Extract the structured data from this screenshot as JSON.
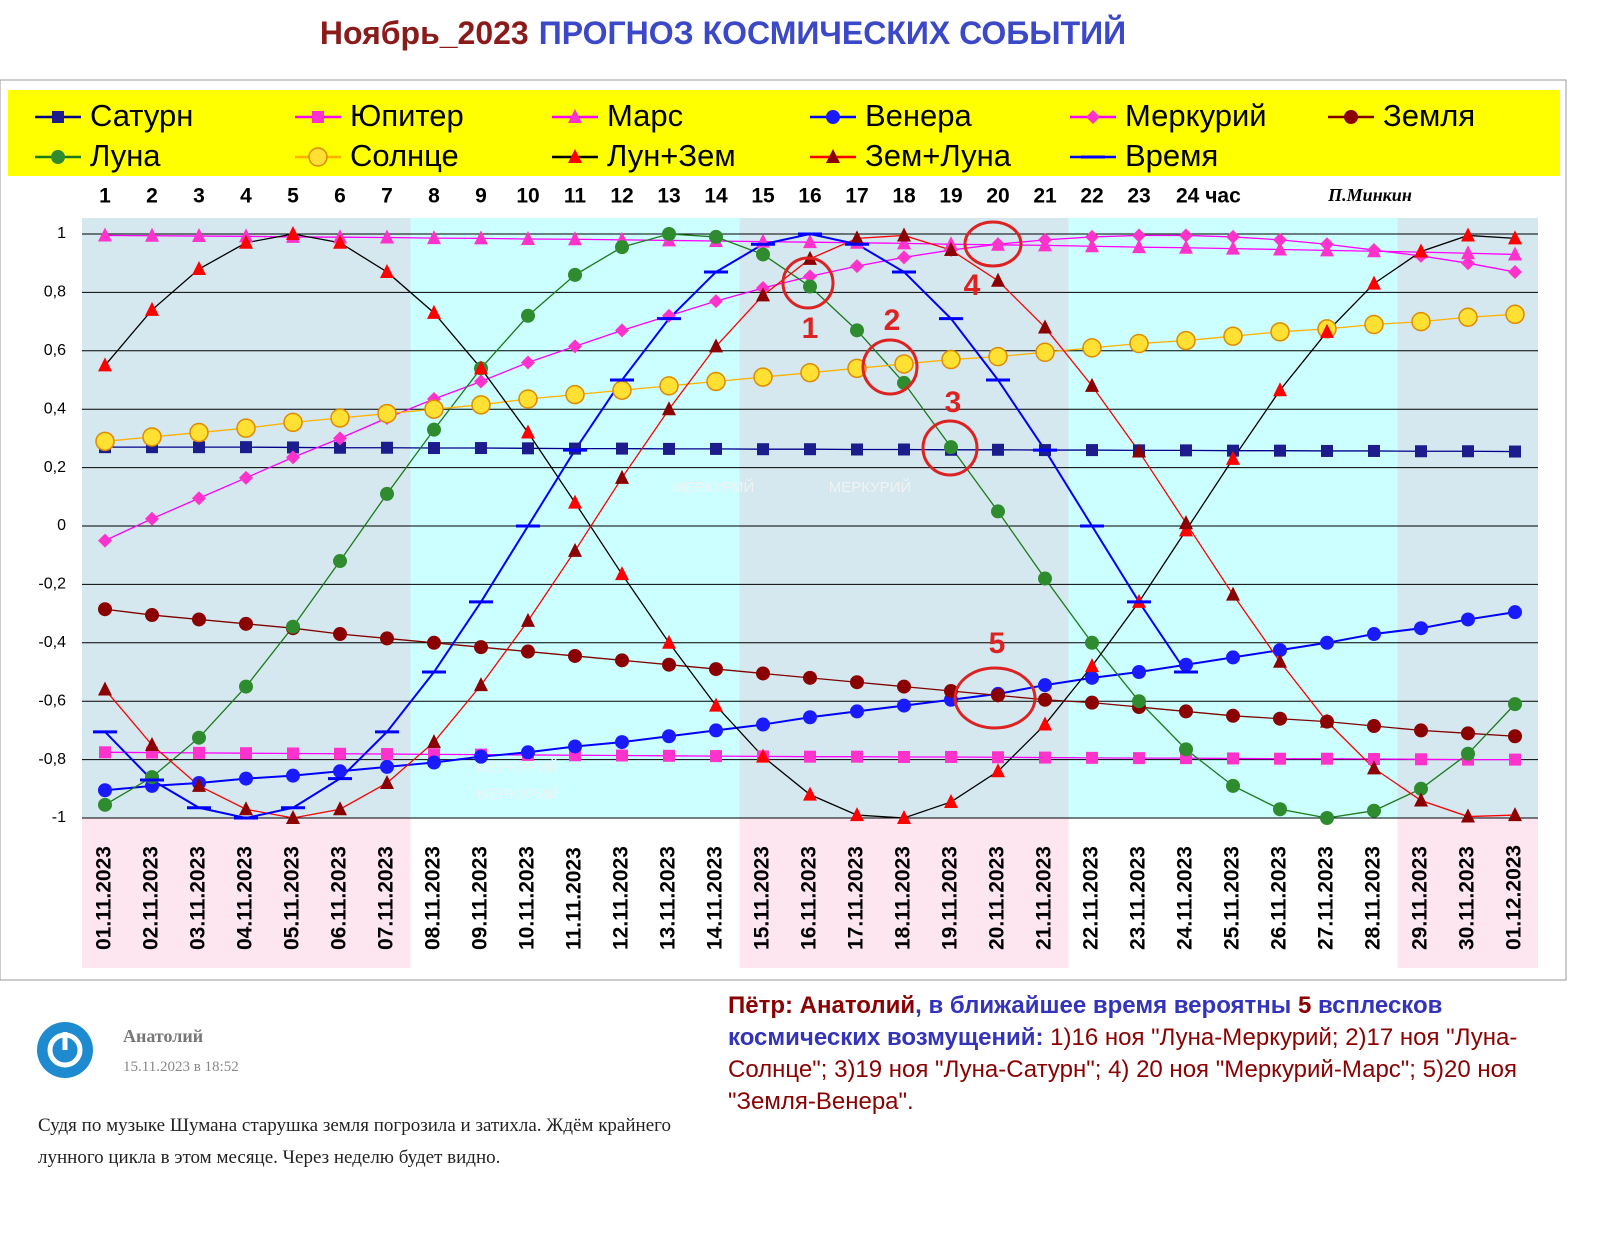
{
  "chart_data": {
    "type": "line",
    "title_parts": [
      "Ноябрь_2023",
      "ПРОГНОЗ КОСМИЧЕСКИХ СОБЫТИЙ"
    ],
    "credit": "П.Минкин",
    "hour_labels": [
      "1",
      "2",
      "3",
      "4",
      "5",
      "6",
      "7",
      "8",
      "9",
      "10",
      "11",
      "12",
      "13",
      "14",
      "15",
      "16",
      "17",
      "18",
      "19",
      "20",
      "21",
      "22",
      "23",
      "24 час"
    ],
    "categories": [
      "01.11.2023",
      "02.11.2023",
      "03.11.2023",
      "04.11.2023",
      "05.11.2023",
      "06.11.2023",
      "07.11.2023",
      "08.11.2023",
      "09.11.2023",
      "10.11.2023",
      "11.11.2023",
      "12.11.2023",
      "13.11.2023",
      "14.11.2023",
      "15.11.2023",
      "16.11.2023",
      "17.11.2023",
      "18.11.2023",
      "19.11.2023",
      "20.11.2023",
      "21.11.2023",
      "22.11.2023",
      "23.11.2023",
      "24.11.2023",
      "25.11.2023",
      "26.11.2023",
      "27.11.2023",
      "28.11.2023",
      "29.11.2023",
      "30.11.2023",
      "01.12.2023"
    ],
    "ylim": [
      -1,
      1
    ],
    "yticks": [
      1,
      {
        "value": 0.8,
        "label": "0,8"
      },
      {
        "value": 0.6,
        "label": "0,6"
      },
      {
        "value": 0.4,
        "label": "0,4"
      },
      {
        "value": 0.2,
        "label": "0,2"
      },
      0,
      {
        "value": -0.2,
        "label": "-0,2"
      },
      {
        "value": -0.4,
        "label": "-0,4"
      },
      {
        "value": -0.6,
        "label": "-0,6"
      },
      {
        "value": -0.8,
        "label": "-0,8"
      },
      -1
    ],
    "grid": true,
    "series": [
      {
        "name": "Сатурн",
        "marker": "square",
        "color": "#1c1c8c",
        "line_color": "#00008b",
        "values": [
          0.27,
          0.27,
          0.27,
          0.27,
          0.269,
          0.268,
          0.268,
          0.267,
          0.267,
          0.266,
          0.265,
          0.265,
          0.264,
          0.264,
          0.263,
          0.263,
          0.262,
          0.262,
          0.261,
          0.261,
          0.26,
          0.26,
          0.259,
          0.259,
          0.258,
          0.258,
          0.257,
          0.257,
          0.256,
          0.256,
          0.255
        ]
      },
      {
        "name": "Юпитер",
        "marker": "square",
        "color": "#ff33cc",
        "line_color": "#ff00ff",
        "values": [
          -0.775,
          -0.776,
          -0.777,
          -0.778,
          -0.779,
          -0.78,
          -0.781,
          -0.782,
          -0.783,
          -0.784,
          -0.785,
          -0.786,
          -0.787,
          -0.788,
          -0.789,
          -0.79,
          -0.79,
          -0.791,
          -0.791,
          -0.792,
          -0.793,
          -0.794,
          -0.795,
          -0.795,
          -0.796,
          -0.797,
          -0.797,
          -0.798,
          -0.799,
          -0.8,
          -0.8
        ]
      },
      {
        "name": "Марс",
        "marker": "triangle",
        "color": "#ff33cc",
        "line_color": "#ff00ff",
        "values": [
          0.995,
          0.994,
          0.993,
          0.992,
          0.99,
          0.989,
          0.988,
          0.986,
          0.985,
          0.983,
          0.982,
          0.98,
          0.978,
          0.976,
          0.974,
          0.972,
          0.97,
          0.968,
          0.965,
          0.963,
          0.961,
          0.958,
          0.955,
          0.953,
          0.95,
          0.947,
          0.944,
          0.941,
          0.938,
          0.934,
          0.93
        ]
      },
      {
        "name": "Венера",
        "marker": "circle",
        "color": "#1a1aff",
        "line_color": "#0000ff",
        "values": [
          -0.905,
          -0.89,
          -0.88,
          -0.865,
          -0.855,
          -0.84,
          -0.825,
          -0.81,
          -0.79,
          -0.775,
          -0.755,
          -0.74,
          -0.72,
          -0.7,
          -0.68,
          -0.655,
          -0.635,
          -0.615,
          -0.595,
          -0.575,
          -0.545,
          -0.52,
          -0.5,
          -0.475,
          -0.45,
          -0.425,
          -0.4,
          -0.37,
          -0.35,
          -0.32,
          -0.295
        ]
      },
      {
        "name": "Меркурий",
        "marker": "diamond",
        "color": "#ff33cc",
        "line_color": "#ff00ff",
        "values": [
          -0.05,
          0.025,
          0.095,
          0.165,
          0.235,
          0.3,
          0.37,
          0.435,
          0.495,
          0.56,
          0.615,
          0.67,
          0.72,
          0.77,
          0.815,
          0.855,
          0.89,
          0.92,
          0.945,
          0.965,
          0.98,
          0.99,
          0.995,
          0.995,
          0.99,
          0.98,
          0.965,
          0.945,
          0.925,
          0.9,
          0.87
        ]
      },
      {
        "name": "Земля",
        "marker": "circle",
        "color": "#8b0000",
        "line_color": "#800000",
        "values": [
          -0.285,
          -0.305,
          -0.32,
          -0.335,
          -0.35,
          -0.37,
          -0.385,
          -0.4,
          -0.415,
          -0.43,
          -0.445,
          -0.46,
          -0.475,
          -0.49,
          -0.505,
          -0.52,
          -0.535,
          -0.55,
          -0.565,
          -0.58,
          -0.595,
          -0.605,
          -0.62,
          -0.635,
          -0.65,
          -0.66,
          -0.67,
          -0.685,
          -0.7,
          -0.71,
          -0.72
        ]
      },
      {
        "name": "Луна",
        "marker": "circle",
        "color": "#2e8b2e",
        "line_color": "#1a7a1a",
        "values": [
          -0.955,
          -0.86,
          -0.725,
          -0.55,
          -0.345,
          -0.12,
          0.11,
          0.33,
          0.54,
          0.72,
          0.86,
          0.955,
          1.0,
          0.99,
          0.93,
          0.82,
          0.67,
          0.49,
          0.27,
          0.05,
          -0.18,
          -0.4,
          -0.6,
          -0.765,
          -0.89,
          -0.97,
          -1.0,
          -0.975,
          -0.9,
          -0.78,
          -0.61
        ]
      },
      {
        "name": "Солнце",
        "marker": "hollow",
        "color": "#ffe033",
        "line_color": "#ffb000",
        "values": [
          0.29,
          0.305,
          0.32,
          0.335,
          0.355,
          0.37,
          0.385,
          0.4,
          0.415,
          0.435,
          0.45,
          0.465,
          0.48,
          0.495,
          0.51,
          0.525,
          0.54,
          0.555,
          0.57,
          0.58,
          0.595,
          0.61,
          0.625,
          0.635,
          0.65,
          0.665,
          0.675,
          0.69,
          0.7,
          0.715,
          0.725
        ]
      },
      {
        "name": "Лун+Зем",
        "marker": "triangle",
        "color": "#ff0000",
        "line_color": "#000000",
        "values": [
          0.55,
          0.74,
          0.88,
          0.97,
          1.0,
          0.97,
          0.87,
          0.73,
          0.54,
          0.32,
          0.08,
          -0.165,
          -0.4,
          -0.615,
          -0.79,
          -0.92,
          -0.99,
          -1.0,
          -0.945,
          -0.84,
          -0.68,
          -0.48,
          -0.26,
          -0.015,
          0.23,
          0.465,
          0.665,
          0.83,
          0.94,
          0.995,
          0.985
        ]
      },
      {
        "name": "Зем+Луна",
        "marker": "triangle",
        "color": "#8b0000",
        "line_color": "#ff0000",
        "values": [
          -0.56,
          -0.75,
          -0.89,
          -0.97,
          -1.0,
          -0.97,
          -0.88,
          -0.74,
          -0.545,
          -0.325,
          -0.085,
          0.165,
          0.4,
          0.615,
          0.79,
          0.915,
          0.985,
          0.995,
          0.945,
          0.84,
          0.68,
          0.48,
          0.255,
          0.01,
          -0.235,
          -0.465,
          -0.67,
          -0.83,
          -0.94,
          -0.995,
          -0.99
        ]
      },
      {
        "name": "Время",
        "marker": "dash",
        "color": "#0000ff",
        "line_color": "#0000ff",
        "values": [
          -0.705,
          -0.87,
          -0.965,
          -1.0,
          -0.965,
          -0.865,
          -0.705,
          -0.5,
          -0.26,
          0.0,
          0.26,
          0.5,
          0.71,
          0.87,
          0.965,
          1.0,
          0.965,
          0.87,
          0.71,
          0.5,
          0.26,
          0.0,
          -0.26,
          -0.5,
          null,
          null,
          null,
          null,
          null,
          null,
          null
        ]
      }
    ],
    "annotations": [
      "1",
      "2",
      "3",
      "4",
      "5"
    ],
    "watermarks": [
      "МЕРКУРИЙ",
      "МЕРКУРИЙ",
      "МЕРКУРИЙ",
      "МЕРКУРИЙ"
    ]
  },
  "comment": {
    "author": "Анатолий",
    "date": "15.11.2023 в 18:52",
    "text": "Судя по музыке Шумана старушка земля погрозила и затихла. Ждём крайнего лунного цикла в этом месяце. Через неделю будет видно."
  },
  "reply": {
    "parts": [
      "Пётр: Анатолий",
      ", в ближайшее время вероятны ",
      "5",
      " всплесков космических возмущений:",
      " 1)16 ноя \"Луна-Меркурий; 2)17 ноя \"Луна-Солнце\"; 3)19 ноя \"Луна-Сатурн\"; 4) 20 ноя \"Меркурий-Марс\"; 5)20 ноя \"Земля-Венера\"."
    ]
  }
}
